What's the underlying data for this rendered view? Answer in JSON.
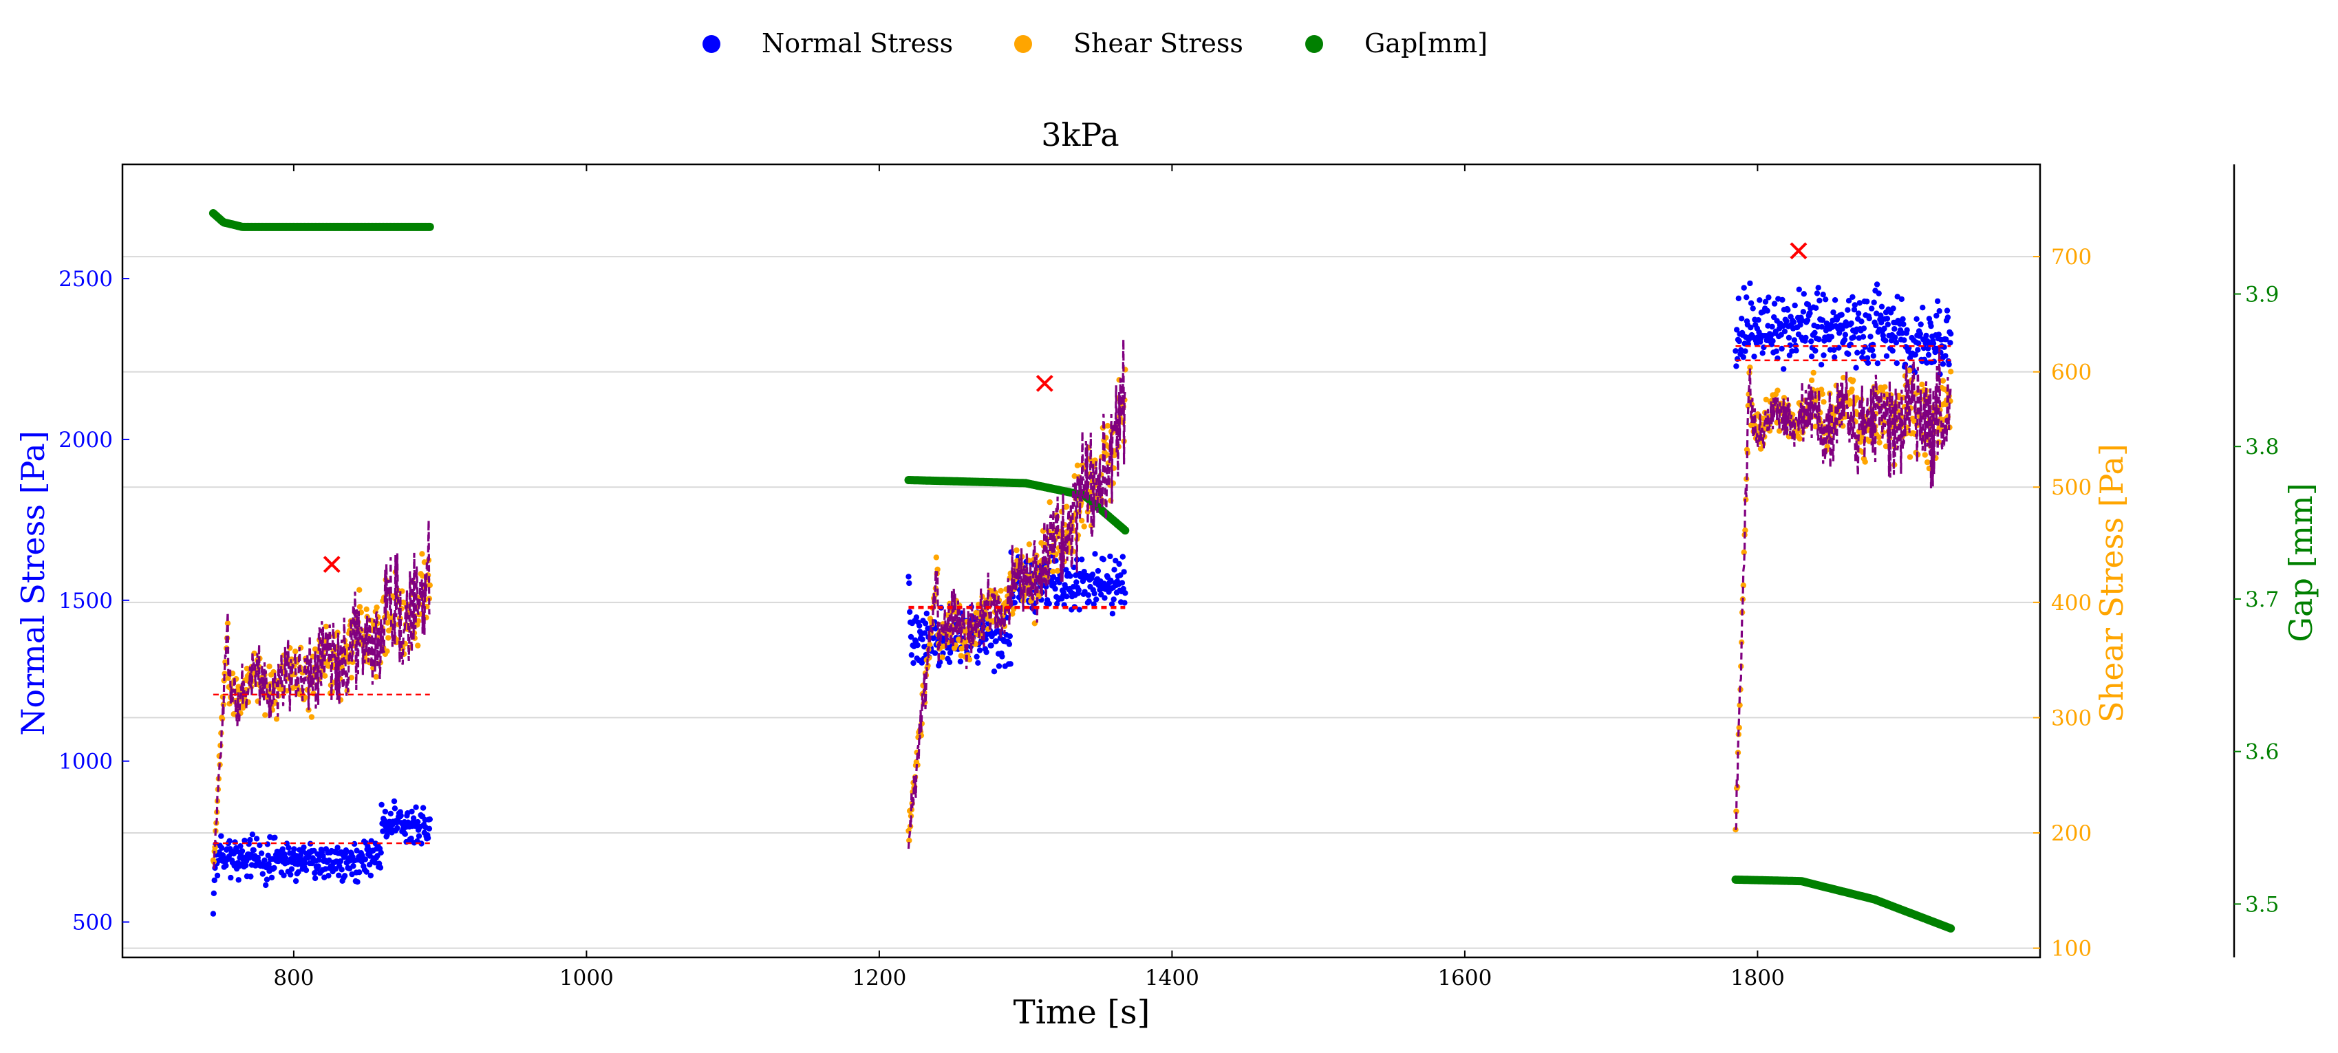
{
  "legend": [
    {
      "label": "Normal Stress",
      "color": "#0000ff"
    },
    {
      "label": "Shear Stress",
      "color": "#ffa500"
    },
    {
      "label": "Gap[mm]",
      "color": "#008000"
    }
  ],
  "chart_data": {
    "type": "scatter",
    "title": "3kPa",
    "xlabel": "Time [s]",
    "ylabel_left": "Normal Stress [Pa]",
    "ylabel_right": "Shear Stress [Pa]",
    "ylabel_far_right": "Gap [mm]",
    "x_ticks": [
      800,
      1000,
      1200,
      1400,
      1600,
      1800
    ],
    "xlim": [
      683,
      1993
    ],
    "y_left_ticks": [
      500,
      1000,
      1500,
      2000,
      2500
    ],
    "ylim_left": [
      390,
      2855
    ],
    "y_right_ticks": [
      100,
      200,
      300,
      400,
      500,
      600,
      700
    ],
    "ylim_right": [
      92,
      780
    ],
    "y_far_right_ticks": [
      3.5,
      3.6,
      3.7,
      3.8,
      3.9
    ],
    "ylim_far_right": [
      3.465,
      3.985
    ],
    "grid": "horizontal at shear stress ticks",
    "legend_position": "top-center, outside plot",
    "colors": {
      "normal": "#0000ff",
      "shear": "#ffa500",
      "gap": "#008000",
      "shear_smoothed": "#800080",
      "marker": "#ff0000"
    },
    "segments": [
      {
        "t_start": 745,
        "t_end": 893,
        "normal_stress": {
          "start": 520,
          "baseline": 700,
          "spread": 90,
          "late_start": 860,
          "late_level": 800
        },
        "shear_stress": {
          "start": 165,
          "rise_end": 755,
          "plateau": 325,
          "peak": 432,
          "end": 410
        },
        "gap_mm": [
          [
            745,
            3.953
          ],
          [
            752,
            3.947
          ],
          [
            765,
            3.944
          ],
          [
            893,
            3.944
          ]
        ],
        "max_marker": {
          "time": 826,
          "shear_stress": 433
        },
        "level_line": {
          "normal_stress": 745,
          "shear_stress": 320
        }
      },
      {
        "t_start": 1220,
        "t_end": 1368,
        "normal_stress": {
          "start": 1550,
          "baseline": 1380,
          "spread": 120,
          "late_start": 1290,
          "late_level": 1550
        },
        "shear_stress": {
          "start": 195,
          "rise_end": 1240,
          "plateau": 370,
          "peak": 590,
          "end": 560
        },
        "gap_mm": [
          [
            1220,
            3.778
          ],
          [
            1300,
            3.776
          ],
          [
            1340,
            3.768
          ],
          [
            1368,
            3.745
          ]
        ],
        "max_marker": {
          "time": 1313,
          "shear_stress": 590
        },
        "level_line": {
          "normal_stress": 1480,
          "shear_stress": 395
        }
      },
      {
        "t_start": 1785,
        "t_end": 1932,
        "normal_stress": {
          "start": 2300,
          "baseline": 2350,
          "spread": 160,
          "late_start": 1900,
          "late_level": 2300
        },
        "shear_stress": {
          "start": 200,
          "rise_end": 1795,
          "plateau": 560,
          "peak": 705,
          "end": 560
        },
        "gap_mm": [
          [
            1785,
            3.516
          ],
          [
            1830,
            3.515
          ],
          [
            1880,
            3.503
          ],
          [
            1932,
            3.484
          ]
        ],
        "max_marker": {
          "time": 1828,
          "shear_stress": 705
        },
        "level_line": {
          "normal_stress": 2290,
          "shear_stress": 610
        }
      }
    ]
  }
}
